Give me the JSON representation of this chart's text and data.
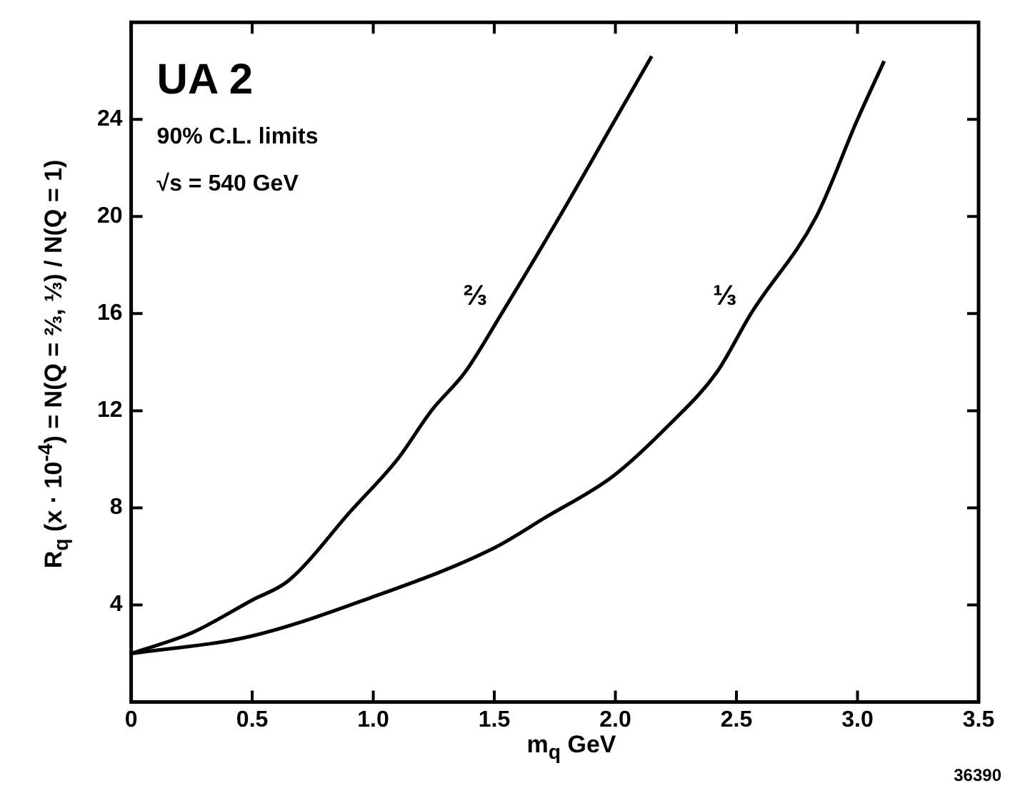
{
  "chart_data": {
    "type": "line",
    "xlabel": "m$_{q}$ GeV",
    "ylabel": "R$_{q}$ (x · 10$^{-4}$) = N(Q = ⅔, ⅓) / N(Q = 1)",
    "annotations": [
      "UA 2",
      "90% C.L. limits",
      "√s = 540 GeV",
      "36390"
    ],
    "series": [
      {
        "name": "⅔",
        "color": "#000000",
        "x": [
          0,
          0.25,
          0.5,
          0.65,
          0.91,
          1.1,
          1.24,
          1.38,
          1.53,
          1.77,
          2.0,
          2.15
        ],
        "values": [
          2,
          2.85,
          4.2,
          5,
          7.9,
          10,
          12,
          13.6,
          16,
          20,
          24,
          26.6
        ]
      },
      {
        "name": "⅓",
        "color": "#000000",
        "x": [
          0,
          0.49,
          0.99,
          1.49,
          1.71,
          1.99,
          2.22,
          2.42,
          2.56,
          2.83,
          3.0,
          3.11
        ],
        "values": [
          2,
          2.7,
          4.3,
          6.3,
          7.6,
          9.3,
          11.4,
          13.6,
          16,
          20,
          24,
          26.4
        ]
      }
    ],
    "xlim": [
      0,
      3.5
    ],
    "xticks": [
      0,
      0.5,
      {
        "value": 1,
        "label": "1.0"
      },
      1.5,
      {
        "value": 2,
        "label": "2.0"
      },
      2.5,
      {
        "value": 3,
        "label": "3.0"
      },
      3.5
    ],
    "ylim": [
      0,
      28
    ],
    "yticks": [
      4,
      8,
      12,
      16,
      20,
      24
    ],
    "grid": false,
    "legend": false,
    "marker": "none",
    "line_style": "solid"
  }
}
